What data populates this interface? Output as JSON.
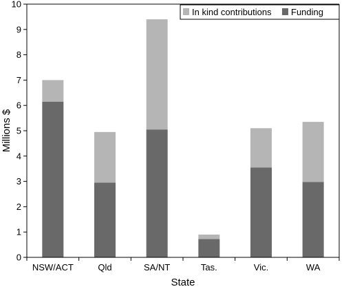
{
  "chart_data": {
    "type": "bar",
    "stacked": true,
    "categories": [
      "NSW/ACT",
      "Qld",
      "SA/NT",
      "Tas.",
      "Vic.",
      "WA"
    ],
    "series": [
      {
        "name": "Funding",
        "values": [
          6.15,
          2.95,
          5.05,
          0.72,
          3.55,
          2.98
        ],
        "color": "#696969"
      },
      {
        "name": "In kind contributions",
        "values": [
          0.85,
          2.0,
          4.35,
          0.18,
          1.55,
          2.37
        ],
        "color": "#b5b5b5"
      }
    ],
    "xlabel": "State",
    "ylabel": "Millions $",
    "ylim": [
      0,
      10
    ],
    "yticks": [
      0,
      1,
      2,
      3,
      4,
      5,
      6,
      7,
      8,
      9,
      10
    ],
    "grid": false,
    "legend": {
      "placement": "top-right",
      "entries": [
        "In kind contributions",
        "Funding"
      ]
    }
  }
}
